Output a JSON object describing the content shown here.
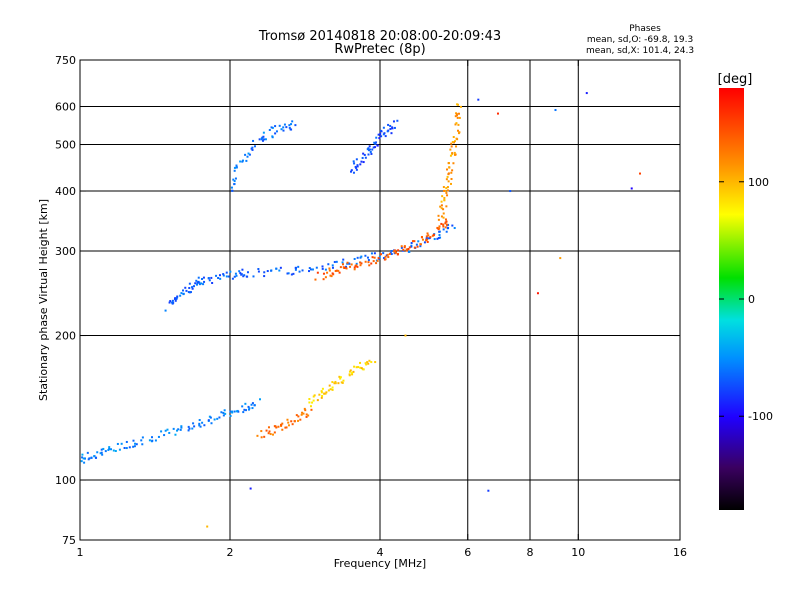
{
  "header": {
    "title": "Tromsø 20140818 20:08:00-20:09:43",
    "subtitle": "RwPretec (8p)"
  },
  "stats": {
    "heading": "Phases",
    "line_o": "mean, sd,O: -69.8, 19.3",
    "line_x": "mean, sd,X: 101.4, 24.3"
  },
  "colorbar": {
    "unit": "[deg]",
    "ticks": [
      "100",
      "0",
      "-100"
    ],
    "tick_values": [
      100,
      0,
      -100
    ],
    "range": [
      -180,
      180
    ]
  },
  "chart_data": {
    "type": "scatter",
    "xlabel": "Frequency [MHz]",
    "ylabel": "Stationary phase Virtual Height [km]",
    "x_scale": "log",
    "y_scale": "log",
    "xlim": [
      1,
      16
    ],
    "ylim": [
      75,
      750
    ],
    "x_ticks": [
      1,
      2,
      4,
      6,
      8,
      10,
      16
    ],
    "x_tick_labels": [
      "1",
      "2",
      "4",
      "6",
      "8",
      "10",
      "16"
    ],
    "x_gridlines": [
      2,
      4,
      6,
      8,
      10
    ],
    "y_ticks": [
      75,
      100,
      200,
      300,
      400,
      500,
      600,
      750
    ],
    "y_tick_labels": [
      "75",
      "100",
      "200",
      "300",
      "400",
      "500",
      "600",
      "750"
    ],
    "y_gridlines": [
      100,
      200,
      300,
      400,
      500,
      600
    ],
    "grid": true,
    "color_by": "phase",
    "trace_segments": [
      {
        "x": [
          1.0,
          1.05,
          1.15,
          1.3,
          1.5,
          1.7,
          1.9,
          2.1,
          2.3
        ],
        "y": [
          110,
          112,
          116,
          120,
          125,
          130,
          136,
          140,
          145
        ],
        "phase": -55
      },
      {
        "x": [
          1.5,
          1.6,
          1.7,
          1.8,
          2.0,
          2.2,
          2.6,
          3.0,
          3.5,
          4.0,
          4.6,
          5.2,
          5.6
        ],
        "y": [
          230,
          245,
          255,
          262,
          268,
          270,
          272,
          278,
          285,
          294,
          305,
          320,
          340
        ],
        "phase": -65
      },
      {
        "x": [
          2.3,
          2.5,
          2.7,
          2.9
        ],
        "y": [
          125,
          128,
          133,
          140
        ],
        "phase": 130
      },
      {
        "x": [
          2.9,
          3.1,
          3.3,
          3.6,
          3.9
        ],
        "y": [
          145,
          152,
          160,
          170,
          180
        ],
        "phase": 90
      },
      {
        "x": [
          3.0,
          3.3,
          3.6,
          4.0,
          4.4,
          4.8,
          5.2,
          5.5
        ],
        "y": [
          265,
          275,
          280,
          290,
          300,
          315,
          330,
          345
        ],
        "phase": 140
      },
      {
        "x": [
          5.3,
          5.4,
          5.5,
          5.6,
          5.7,
          5.8
        ],
        "y": [
          350,
          390,
          430,
          480,
          540,
          610
        ],
        "phase": 110
      },
      {
        "x": [
          3.5,
          3.7,
          3.9,
          4.1,
          4.3
        ],
        "y": [
          440,
          470,
          500,
          530,
          560
        ],
        "phase": -75
      },
      {
        "x": [
          2.0,
          2.1,
          2.3,
          2.5,
          2.7
        ],
        "y": [
          400,
          460,
          510,
          540,
          550
        ],
        "phase": -60
      }
    ],
    "scattered_samples": [
      {
        "x": 6.3,
        "y": 620,
        "phase": -80
      },
      {
        "x": 6.9,
        "y": 580,
        "phase": 160
      },
      {
        "x": 7.3,
        "y": 400,
        "phase": -70
      },
      {
        "x": 9.0,
        "y": 590,
        "phase": -60
      },
      {
        "x": 10.4,
        "y": 640,
        "phase": -90
      },
      {
        "x": 12.8,
        "y": 405,
        "phase": -100
      },
      {
        "x": 13.3,
        "y": 435,
        "phase": 150
      },
      {
        "x": 8.3,
        "y": 245,
        "phase": 170
      },
      {
        "x": 9.2,
        "y": 290,
        "phase": 110
      },
      {
        "x": 4.5,
        "y": 200,
        "phase": 100
      },
      {
        "x": 6.6,
        "y": 95,
        "phase": -80
      },
      {
        "x": 2.2,
        "y": 96,
        "phase": -90
      },
      {
        "x": 1.8,
        "y": 80,
        "phase": 100
      }
    ]
  }
}
